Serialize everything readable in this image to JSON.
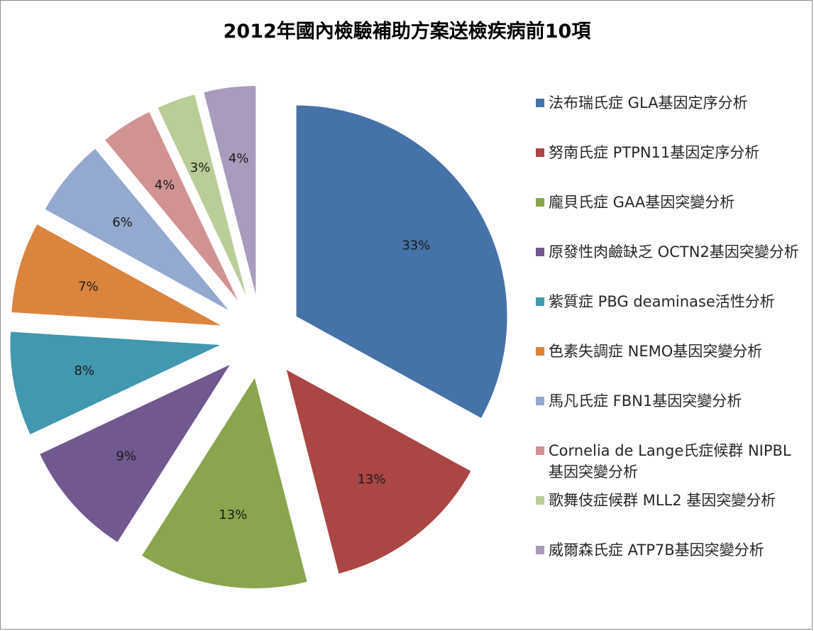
{
  "chart_data": {
    "type": "pie",
    "title": "2012年國內檢驗補助方案送檢疾病前10項",
    "legend_position": "right",
    "slices": [
      {
        "name": "法布瑞氏症 GLA基因定序分析",
        "value": 33,
        "label": "33%",
        "color": "#4572a7"
      },
      {
        "name": "努南氏症 PTPN11基因定序分析",
        "value": 13,
        "label": "13%",
        "color": "#aa4643"
      },
      {
        "name": "龐貝氏症 GAA基因突變分析",
        "value": 13,
        "label": "13%",
        "color": "#89a54e"
      },
      {
        "name": "原發性肉鹼缺乏 OCTN2基因突變分析",
        "value": 9,
        "label": "9%",
        "color": "#71588f"
      },
      {
        "name": "紫質症 PBG deaminase活性分析",
        "value": 8,
        "label": "8%",
        "color": "#4198af"
      },
      {
        "name": "色素失調症 NEMO基因突變分析",
        "value": 7,
        "label": "7%",
        "color": "#db843d"
      },
      {
        "name": "馬凡氏症 FBN1基因突變分析",
        "value": 6,
        "label": "6%",
        "color": "#93a9cf"
      },
      {
        "name": "Cornelia de Lange氏症候群 NIPBL基因突變分析",
        "value": 4,
        "label": "4%",
        "color": "#d19392"
      },
      {
        "name": "歌舞伎症候群 MLL2 基因突變分析",
        "value": 3,
        "label": "3%",
        "color": "#b9cd96"
      },
      {
        "name": "威爾森氏症 ATP7B基因突變分析",
        "value": 4,
        "label": "4%",
        "color": "#a99bbd"
      }
    ]
  }
}
